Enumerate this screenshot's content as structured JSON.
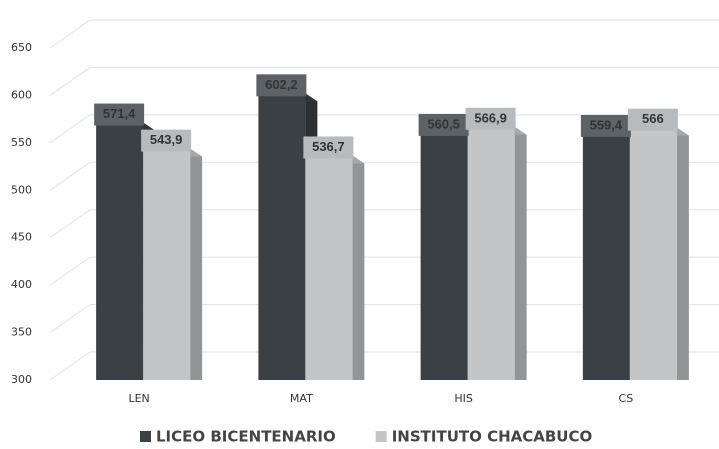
{
  "chart_data": {
    "type": "bar",
    "categories": [
      "LEN",
      "MAT",
      "HIS",
      "CS"
    ],
    "series": [
      {
        "name": "LICEO BICENTENARIO",
        "color": "#3b4045",
        "values": [
          571.4,
          602.2,
          560.5,
          559.4
        ],
        "value_labels": [
          "571,4",
          "602,2",
          "560,5",
          "559,4"
        ]
      },
      {
        "name": "INSTITUTO CHACABUCO",
        "color": "#c3c5c7",
        "values": [
          543.9,
          536.7,
          566.9,
          566
        ],
        "value_labels": [
          "543,9",
          "536,7",
          "566,9",
          "566"
        ]
      }
    ],
    "ylim": [
      300,
      650
    ],
    "yticks": [
      300,
      350,
      400,
      450,
      500,
      550,
      600,
      650
    ],
    "grid": true,
    "legend": "bottom"
  }
}
